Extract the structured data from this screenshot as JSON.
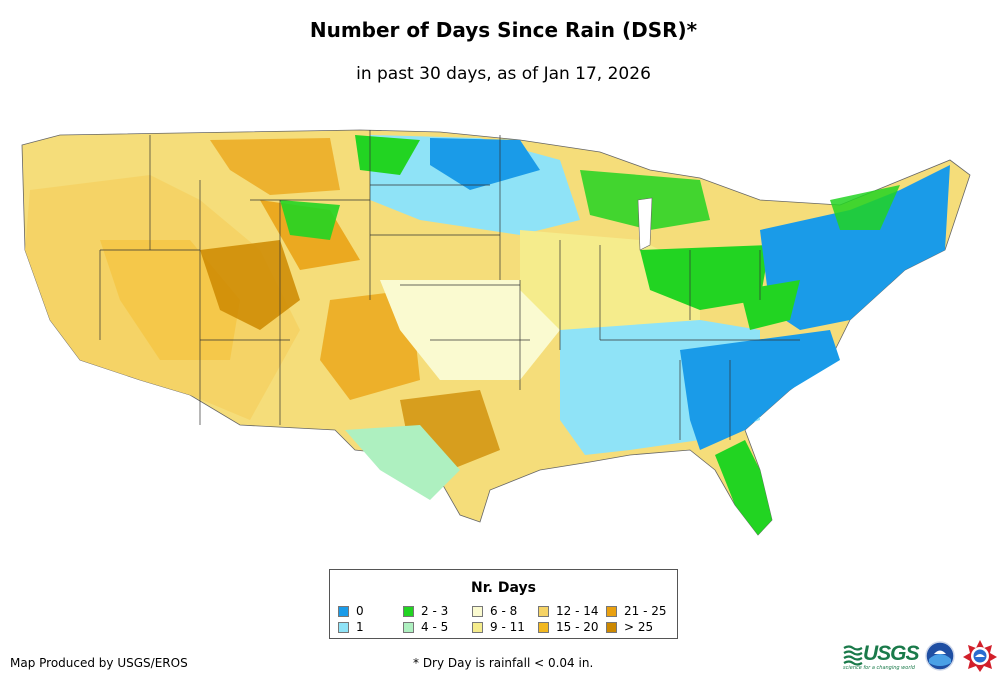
{
  "header": {
    "title": "Number of Days Since Rain (DSR)*",
    "subtitle": "in past 30 days, as of Jan 17, 2026"
  },
  "legend": {
    "title": "Nr. Days",
    "items": [
      {
        "label": "0",
        "color": "#1a9be8"
      },
      {
        "label": "1",
        "color": "#8fe3f7"
      },
      {
        "label": "2 - 3",
        "color": "#22d422"
      },
      {
        "label": "4 - 5",
        "color": "#aef0c0"
      },
      {
        "label": "6 - 8",
        "color": "#fafad0"
      },
      {
        "label": "9 - 11",
        "color": "#f5ec8c"
      },
      {
        "label": "12 - 14",
        "color": "#f5d366"
      },
      {
        "label": "15 - 20",
        "color": "#f2b820"
      },
      {
        "label": "21 - 25",
        "color": "#e9a010"
      },
      {
        "label": "> 25",
        "color": "#cc8800"
      }
    ]
  },
  "footer": {
    "credit": "Map Produced by USGS/EROS",
    "footnote": "* Dry Day is rainfall < 0.04 in.",
    "usgs_logo_text": "USGS",
    "usgs_tagline": "science for a changing world"
  }
}
